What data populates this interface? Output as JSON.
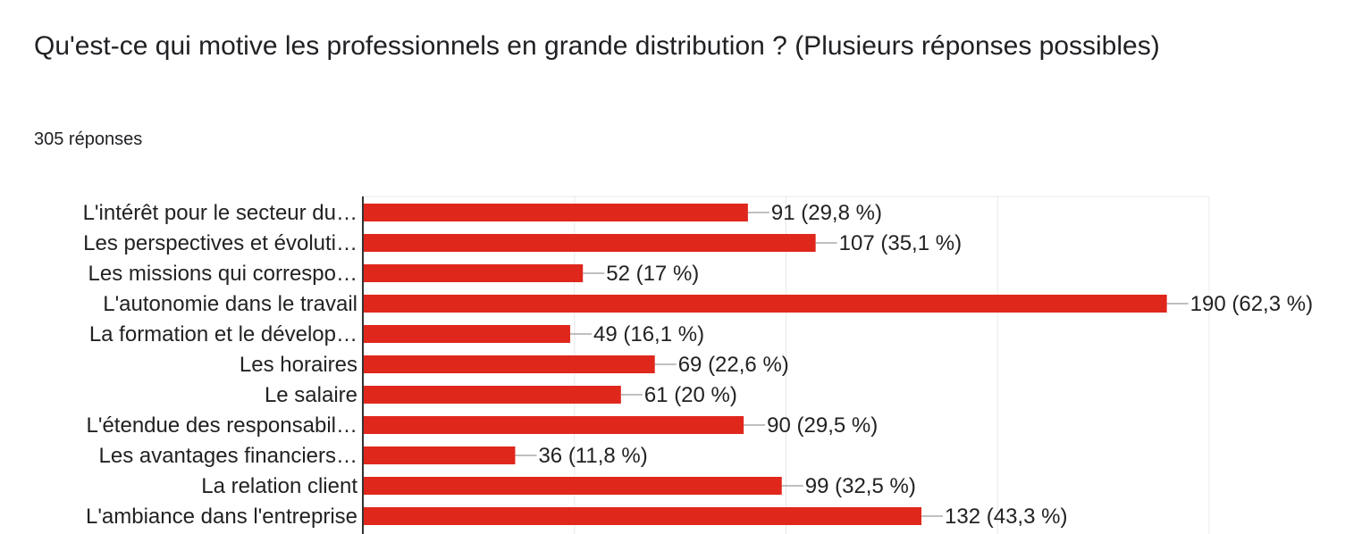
{
  "header": {
    "title": "Qu'est-ce qui motive les professionnels en grande distribution ? (Plusieurs réponses possibles)",
    "response_count": "305 réponses"
  },
  "colors": {
    "bar": "#e0271c",
    "grid": "#e8e8e8",
    "axis": "#333333",
    "leader": "#999999"
  },
  "chart_data": {
    "type": "bar",
    "orientation": "horizontal",
    "categories": [
      "L'intérêt pour le secteur du…",
      "Les perspectives et évoluti…",
      "Les missions qui correspo…",
      "L'autonomie dans le travail",
      "La formation et le dévelop…",
      "Les horaires",
      "Le salaire",
      "L'étendue des responsabil…",
      "Les avantages financiers…",
      "La relation client",
      "L'ambiance dans l'entreprise"
    ],
    "values": [
      91,
      107,
      52,
      190,
      49,
      69,
      61,
      90,
      36,
      99,
      132
    ],
    "data_labels": [
      "91 (29,8 %)",
      "107 (35,1 %)",
      "52 (17 %)",
      "190 (62,3 %)",
      "49 (16,1 %)",
      "69 (22,6 %)",
      "61 (20 %)",
      "90 (29,5 %)",
      "36 (11,8 %)",
      "99 (32,5 %)",
      "132 (43,3 %)"
    ],
    "xlim": [
      0,
      200
    ],
    "grid": true
  }
}
